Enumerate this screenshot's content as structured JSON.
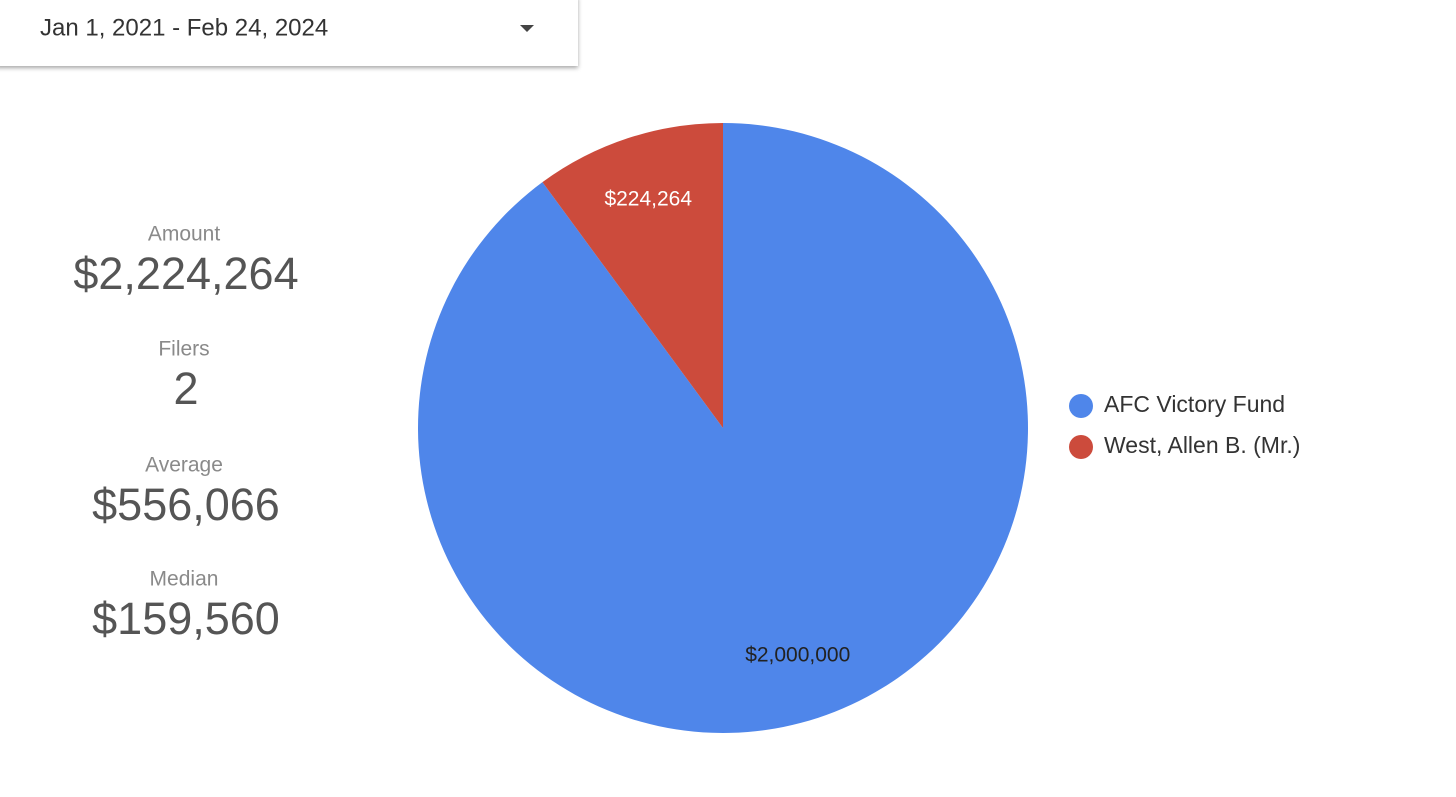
{
  "date_range": "Jan 1, 2021 - Feb 24, 2024",
  "scorecards": [
    {
      "label": "Amount",
      "value": "$2,224,264"
    },
    {
      "label": "Filers",
      "value": "2"
    },
    {
      "label": "Average",
      "value": "$556,066"
    },
    {
      "label": "Median",
      "value": "$159,560"
    }
  ],
  "chart_data": {
    "type": "pie",
    "categories": [
      "AFC Victory Fund",
      "West, Allen B. (Mr.)"
    ],
    "values": [
      2000000,
      224264
    ],
    "value_labels": [
      "$2,000,000",
      "$224,264"
    ],
    "colors": [
      "#4f86ea",
      "#cc4b3c"
    ],
    "legend": "right"
  }
}
